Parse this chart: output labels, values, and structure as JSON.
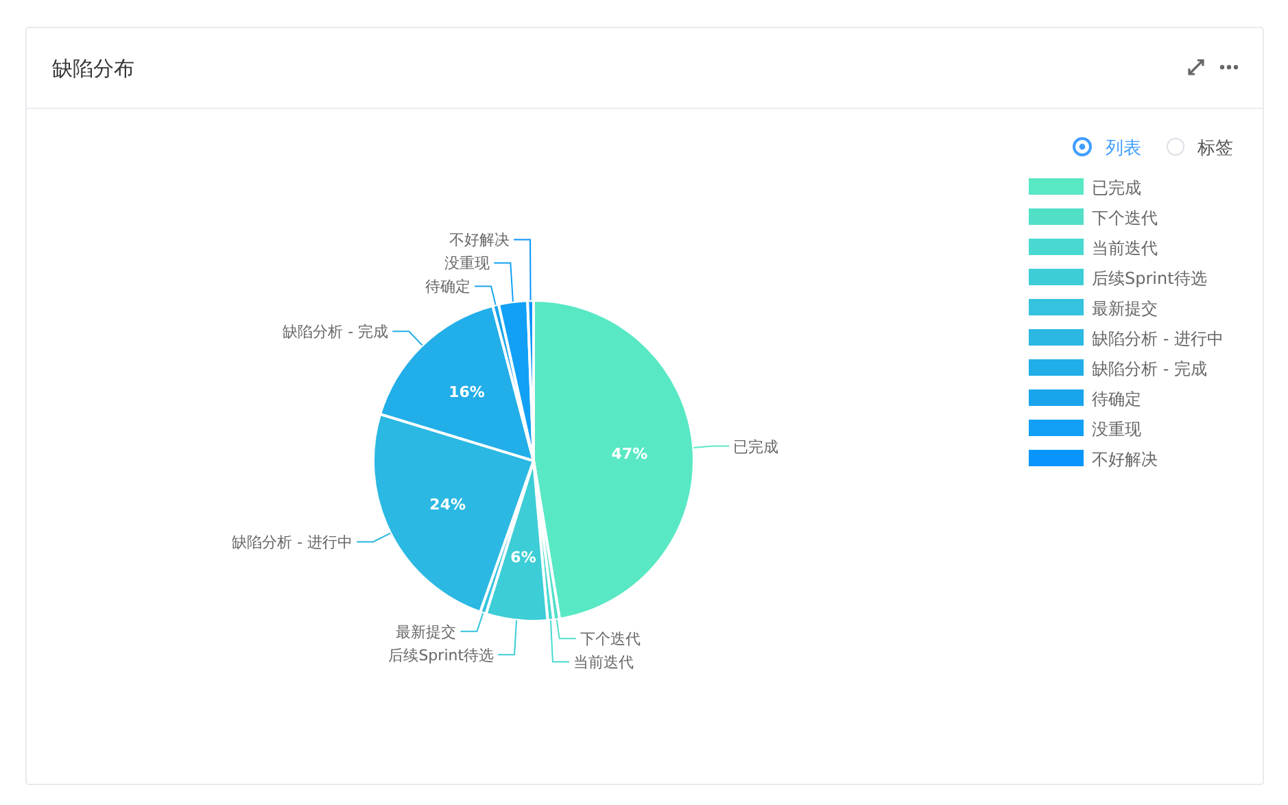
{
  "chart_data": {
    "type": "pie",
    "title": "缺陷分布",
    "categories": [
      "已完成",
      "下个迭代",
      "当前迭代",
      "后续Sprint待选",
      "最新提交",
      "缺陷分析 - 进行中",
      "缺陷分析 - 完成",
      "待确定",
      "没重现",
      "不好解决"
    ],
    "values": [
      47.4,
      0.6,
      0.6,
      6.2,
      0.6,
      24.3,
      16.2,
      0.6,
      2.9,
      0.6
    ],
    "value_labels": [
      "47%",
      null,
      null,
      "6%",
      null,
      "24%",
      "16%",
      null,
      null,
      null
    ],
    "colors": [
      "#58e8c4",
      "#51dfc8",
      "#49d9d0",
      "#3dcdd6",
      "#34c2de",
      "#2bb8e2",
      "#22aee8",
      "#1aa4ec",
      "#11a0f6",
      "#0895fb"
    ],
    "legend": "top right",
    "annotations": [
      "列表",
      "标签"
    ]
  }
}
